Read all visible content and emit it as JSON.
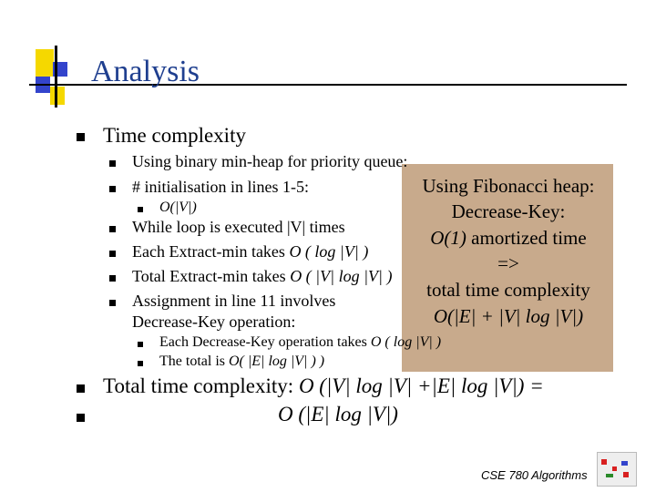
{
  "slide": {
    "title": "Analysis",
    "main_bullet": "Time complexity",
    "sub": {
      "binary_heap": "Using binary min-heap for priority queue:",
      "init": "# initialisation in lines 1-5:",
      "init_sub": "O(|V|)",
      "while": "While loop is executed |V| times",
      "extract_prefix": "Each Extract-min takes ",
      "extract_math": "O ( log |V| )",
      "total_extract_prefix": "Total Extract-min takes ",
      "total_extract_math": "O ( |V| log |V| )",
      "assign_line1": "Assignment in line 11 involves",
      "assign_line2": "Decrease-Key operation:",
      "dk_prefix": "Each Decrease-Key operation takes ",
      "dk_math": "O ( log |V| )",
      "total_prefix": "The total is ",
      "total_math": "O( |E|  log |V| ) )"
    },
    "fib": {
      "line1": "Using Fibonacci heap:",
      "line2": "Decrease-Key:",
      "line3_math": "O(1)",
      "line3_text": " amortized time",
      "line4": "=>",
      "line5": "total time complexity",
      "line6": "O(|E| + |V| log |V|)"
    },
    "bottom": {
      "line1_prefix": "Total time complexity: ",
      "line1_math": "O (|V| log |V| +|E| log |V|) =",
      "line2_math": "O (|E| log |V|)"
    },
    "footer": "CSE 780 Algorithms"
  },
  "colors": {
    "title": "#1f3f8f",
    "overlay": "#c8aa8c",
    "logo_yellow": "#f5d800",
    "logo_blue": "#3344cc",
    "logo_red": "#d82020"
  }
}
